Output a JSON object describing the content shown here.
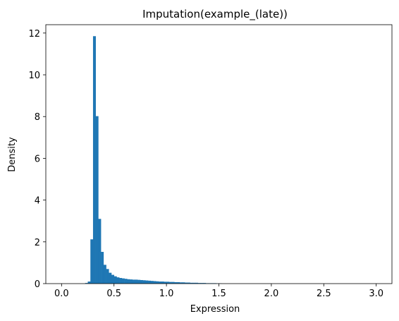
{
  "chart_data": {
    "type": "bar",
    "title": "Imputation(example_(late))",
    "xlabel": "Expression",
    "ylabel": "Density",
    "xlim": [
      -0.15,
      3.15
    ],
    "ylim": [
      0,
      12.4
    ],
    "xticks": [
      0.0,
      0.5,
      1.0,
      1.5,
      2.0,
      2.5,
      3.0
    ],
    "xtick_labels": [
      "0.0",
      "0.5",
      "1.0",
      "1.5",
      "2.0",
      "2.5",
      "3.0"
    ],
    "yticks": [
      0,
      2,
      4,
      6,
      8,
      10,
      12
    ],
    "ytick_labels": [
      "0",
      "2",
      "4",
      "6",
      "8",
      "10",
      "12"
    ],
    "bar_color": "#1f77b4",
    "bin_width": 0.025,
    "bin_starts": [
      0.225,
      0.25,
      0.275,
      0.3,
      0.325,
      0.35,
      0.375,
      0.4,
      0.425,
      0.45,
      0.475,
      0.5,
      0.525,
      0.55,
      0.575,
      0.6,
      0.625,
      0.65,
      0.675,
      0.7,
      0.725,
      0.75,
      0.775,
      0.8,
      0.825,
      0.85,
      0.875,
      0.9,
      0.925,
      0.95,
      0.975,
      1.0,
      1.025,
      1.05,
      1.075,
      1.1,
      1.125,
      1.15,
      1.175,
      1.2,
      1.225,
      1.25,
      1.275,
      1.3,
      1.325,
      1.35,
      1.375,
      1.4,
      1.425,
      1.45,
      1.475,
      1.5
    ],
    "values": [
      0.03,
      0.1,
      2.12,
      11.85,
      8.02,
      3.1,
      1.52,
      0.9,
      0.7,
      0.52,
      0.42,
      0.35,
      0.3,
      0.27,
      0.25,
      0.23,
      0.21,
      0.2,
      0.19,
      0.19,
      0.18,
      0.17,
      0.16,
      0.15,
      0.14,
      0.13,
      0.12,
      0.11,
      0.1,
      0.1,
      0.09,
      0.09,
      0.08,
      0.08,
      0.07,
      0.07,
      0.06,
      0.06,
      0.05,
      0.05,
      0.04,
      0.04,
      0.04,
      0.03,
      0.03,
      0.03,
      0.02,
      0.02,
      0.02,
      0.02,
      0.01,
      0.01
    ]
  }
}
